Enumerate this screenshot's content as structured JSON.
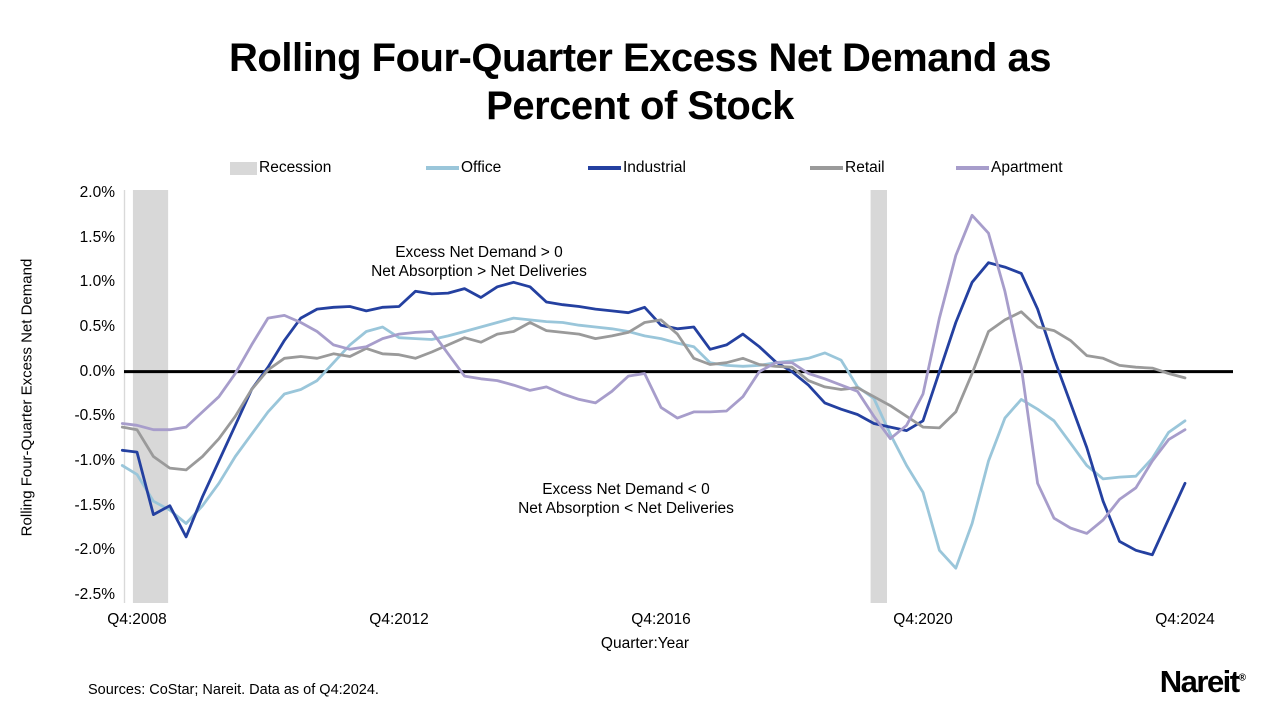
{
  "title": "Rolling Four-Quarter Excess Net Demand as Percent of Stock",
  "title_lines": [
    "Rolling Four-Quarter Excess Net Demand as",
    "Percent of Stock"
  ],
  "legend": {
    "items": [
      {
        "label": "Recession",
        "type": "rect",
        "color": "#D8D8D8"
      },
      {
        "label": "Office",
        "type": "line",
        "color": "#9AC6DA"
      },
      {
        "label": "Industrial",
        "type": "line",
        "color": "#2440A0"
      },
      {
        "label": "Retail",
        "type": "line",
        "color": "#9A9A9A"
      },
      {
        "label": "Apartment",
        "type": "line",
        "color": "#A79DCB"
      }
    ]
  },
  "annotations": {
    "positive": [
      "Excess Net Demand > 0",
      "Net Absorption > Net Deliveries"
    ],
    "negative": [
      "Excess Net Demand < 0",
      "Net Absorption < Net Deliveries"
    ]
  },
  "footer": {
    "sources": "Sources: CoStar; Nareit. Data as of Q4:2024.",
    "logo": "Nareit",
    "logo_mark": "®"
  },
  "chart_data": {
    "type": "line",
    "title": "Rolling Four-Quarter Excess Net Demand as Percent of Stock",
    "xlabel": "Quarter:Year",
    "ylabel": "Rolling Four-Quarter Excess Net Demand",
    "x_interval": "quarterly",
    "x_start": "Q4:2008",
    "x_end": "Q4:2024",
    "x_tick_labels": [
      "Q4:2008",
      "Q4:2012",
      "Q4:2016",
      "Q4:2020",
      "Q4:2024"
    ],
    "x_tick_positions": [
      0,
      16,
      32,
      48,
      64
    ],
    "y_ticks": [
      2.0,
      1.5,
      1.0,
      0.5,
      0.0,
      -0.5,
      -1.0,
      -1.5,
      -2.0,
      -2.5
    ],
    "ylim": [
      -2.5,
      2.0
    ],
    "y_unit": "%",
    "grid": false,
    "zero_line": true,
    "recession_color": "#D8D8D8",
    "recession_bands_quarters": [
      [
        -0.25,
        1.9
      ],
      [
        44.8,
        45.8
      ]
    ],
    "series": [
      {
        "name": "Office",
        "color": "#9AC6DA",
        "edge_value": -1.05,
        "values": [
          -1.15,
          -1.45,
          -1.55,
          -1.7,
          -1.5,
          -1.25,
          -0.95,
          -0.7,
          -0.45,
          -0.25,
          -0.2,
          -0.1,
          0.1,
          0.3,
          0.45,
          0.5,
          0.38,
          0.37,
          0.36,
          0.4,
          0.45,
          0.5,
          0.55,
          0.6,
          0.58,
          0.56,
          0.55,
          0.52,
          0.5,
          0.48,
          0.45,
          0.4,
          0.37,
          0.32,
          0.28,
          0.1,
          0.07,
          0.06,
          0.07,
          0.1,
          0.12,
          0.15,
          0.21,
          0.13,
          -0.17,
          -0.3,
          -0.7,
          -1.05,
          -1.35,
          -2.0,
          -2.2,
          -1.7,
          -1.0,
          -0.52,
          -0.31,
          -0.42,
          -0.55,
          -0.8,
          -1.05,
          -1.2,
          -1.18,
          -1.17,
          -0.97,
          -0.68,
          -0.55
        ]
      },
      {
        "name": "Industrial",
        "color": "#2440A0",
        "edge_value": -0.88,
        "values": [
          -0.9,
          -1.6,
          -1.5,
          -1.85,
          -1.4,
          -1.0,
          -0.6,
          -0.2,
          0.05,
          0.35,
          0.6,
          0.7,
          0.72,
          0.73,
          0.68,
          0.72,
          0.73,
          0.9,
          0.87,
          0.88,
          0.93,
          0.83,
          0.95,
          1.0,
          0.95,
          0.78,
          0.75,
          0.73,
          0.7,
          0.68,
          0.66,
          0.72,
          0.52,
          0.48,
          0.5,
          0.25,
          0.3,
          0.42,
          0.28,
          0.11,
          0.0,
          -0.15,
          -0.35,
          -0.42,
          -0.48,
          -0.58,
          -0.62,
          -0.66,
          -0.55,
          0.0,
          0.55,
          1.0,
          1.22,
          1.17,
          1.1,
          0.7,
          0.15,
          -0.35,
          -0.85,
          -1.45,
          -1.9,
          -2.0,
          -2.05,
          -1.65,
          -1.25
        ]
      },
      {
        "name": "Retail",
        "color": "#9A9A9A",
        "edge_value": -0.62,
        "values": [
          -0.65,
          -0.95,
          -1.08,
          -1.1,
          -0.95,
          -0.75,
          -0.5,
          -0.2,
          0.02,
          0.15,
          0.17,
          0.15,
          0.2,
          0.17,
          0.26,
          0.2,
          0.19,
          0.15,
          0.22,
          0.3,
          0.38,
          0.33,
          0.42,
          0.45,
          0.55,
          0.46,
          0.44,
          0.42,
          0.37,
          0.4,
          0.44,
          0.55,
          0.58,
          0.42,
          0.15,
          0.08,
          0.1,
          0.15,
          0.08,
          0.06,
          0.05,
          -0.1,
          -0.17,
          -0.2,
          -0.18,
          -0.28,
          -0.38,
          -0.5,
          -0.62,
          -0.63,
          -0.45,
          -0.02,
          0.45,
          0.58,
          0.67,
          0.5,
          0.46,
          0.35,
          0.18,
          0.15,
          0.07,
          0.05,
          0.04,
          -0.02,
          -0.07
        ]
      },
      {
        "name": "Apartment",
        "color": "#A79DCB",
        "edge_value": -0.58,
        "values": [
          -0.6,
          -0.65,
          -0.65,
          -0.62,
          -0.45,
          -0.28,
          -0.02,
          0.3,
          0.6,
          0.63,
          0.55,
          0.45,
          0.3,
          0.25,
          0.28,
          0.37,
          0.42,
          0.44,
          0.45,
          0.2,
          -0.05,
          -0.08,
          -0.1,
          -0.15,
          -0.21,
          -0.17,
          -0.25,
          -0.31,
          -0.35,
          -0.22,
          -0.05,
          -0.02,
          -0.4,
          -0.52,
          -0.45,
          -0.45,
          -0.44,
          -0.28,
          0.0,
          0.1,
          0.1,
          -0.02,
          -0.08,
          -0.15,
          -0.22,
          -0.5,
          -0.75,
          -0.6,
          -0.25,
          0.6,
          1.3,
          1.75,
          1.55,
          0.9,
          0.05,
          -1.25,
          -1.64,
          -1.75,
          -1.81,
          -1.66,
          -1.43,
          -1.3,
          -1.0,
          -0.76,
          -0.65
        ]
      }
    ]
  }
}
